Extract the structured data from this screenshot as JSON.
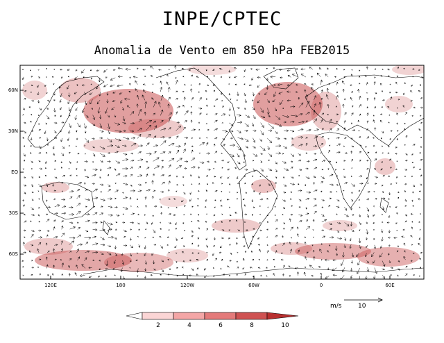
{
  "title": "INPE/CPTEC",
  "subtitle": "Anomalia de Vento em 850 hPa FEB2015",
  "map": {
    "lat_ticks": [
      "60N",
      "30N",
      "EQ",
      "30S",
      "60S"
    ],
    "lon_ticks": [
      "120E",
      "180",
      "120W",
      "60W",
      "0",
      "60E"
    ],
    "shading_color": "#c85050",
    "coast_color": "#000000"
  },
  "reference_vector": {
    "unit_label": "m/s",
    "value_label": "10"
  },
  "colorbar": {
    "labels": [
      "2",
      "4",
      "6",
      "8",
      "10"
    ],
    "colors": [
      "#ffffff",
      "#fbd5d5",
      "#f4a6a6",
      "#e47a7a",
      "#cf5252",
      "#b83030"
    ]
  }
}
